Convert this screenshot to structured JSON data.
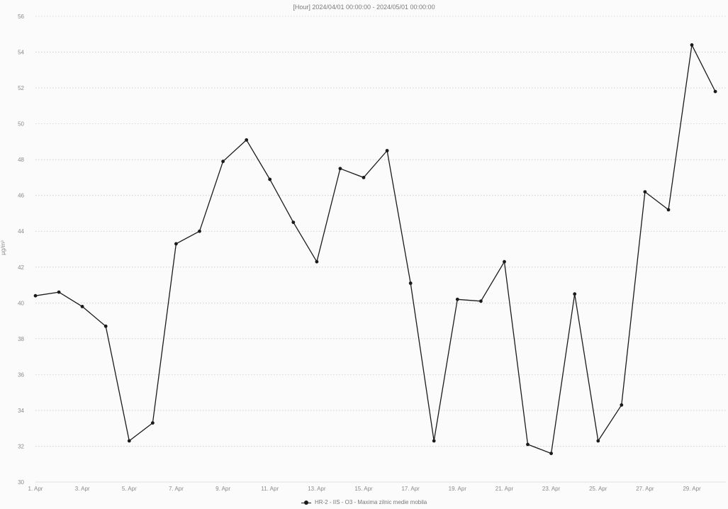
{
  "chart_data": {
    "type": "line",
    "title": "[Hour] 2024/04/01 00:00:00 - 2024/05/01 00:00:00",
    "ylabel": "µg/m³",
    "xlabel": "",
    "ylim": [
      30,
      56
    ],
    "yticks": [
      30,
      32,
      34,
      36,
      38,
      40,
      42,
      44,
      46,
      48,
      50,
      52,
      54,
      56
    ],
    "x_tick_labels": [
      "1. Apr",
      "3. Apr",
      "5. Apr",
      "7. Apr",
      "9. Apr",
      "11. Apr",
      "13. Apr",
      "15. Apr",
      "17. Apr",
      "19. Apr",
      "21. Apr",
      "23. Apr",
      "25. Apr",
      "27. Apr",
      "29. Apr"
    ],
    "grid": true,
    "legend_position": "bottom",
    "series": [
      {
        "name": "HR-2 - IIS - O3 - Maxima zilnic medie mobila",
        "color": "#1a1a1a",
        "x": [
          1,
          2,
          3,
          4,
          5,
          6,
          7,
          8,
          9,
          10,
          11,
          12,
          13,
          14,
          15,
          16,
          17,
          18,
          19,
          20,
          21,
          22,
          23,
          24,
          25,
          26,
          27,
          28,
          29,
          30
        ],
        "values": [
          40.4,
          40.6,
          39.8,
          38.7,
          32.3,
          33.3,
          43.3,
          44.0,
          47.9,
          49.1,
          46.9,
          44.5,
          42.3,
          47.5,
          47.0,
          48.5,
          41.1,
          32.3,
          40.2,
          40.1,
          42.3,
          32.1,
          31.6,
          40.5,
          32.3,
          34.3,
          46.2,
          45.2,
          54.4,
          51.8
        ]
      }
    ]
  }
}
